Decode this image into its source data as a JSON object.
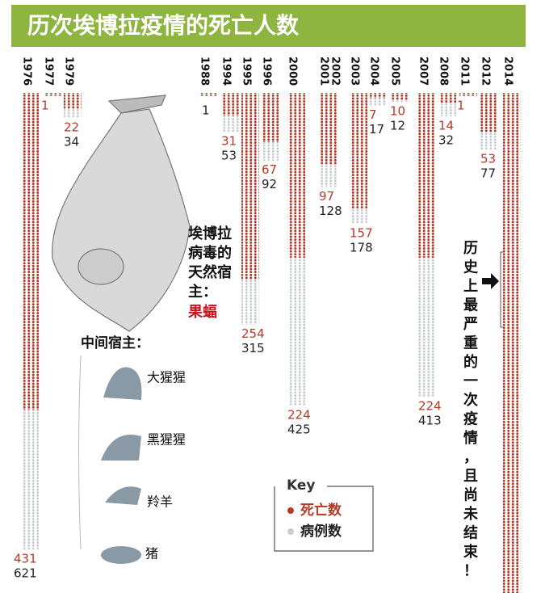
{
  "chart_data": {
    "type": "dot_column",
    "title": "历次埃博拉疫情的死亡人数",
    "categories": [
      "1976",
      "1977",
      "1979",
      "1988",
      "1994",
      "1995",
      "1996",
      "2000",
      "2001",
      "2002",
      "2003",
      "2004",
      "2005",
      "2007",
      "2008",
      "2011",
      "2012",
      "2014"
    ],
    "series": [
      {
        "name": "死亡数",
        "color": "#b23a26",
        "values": [
          431,
          1,
          22,
          1,
          31,
          254,
          67,
          224,
          97,
          null,
          157,
          7,
          10,
          224,
          14,
          1,
          53,
          700
        ]
      },
      {
        "name": "病例数",
        "color": "#c9cdd2",
        "values": [
          621,
          1,
          34,
          1,
          53,
          315,
          92,
          425,
          128,
          null,
          178,
          17,
          12,
          413,
          32,
          1,
          77,
          700
        ]
      }
    ],
    "legend_title": "Key",
    "host_label": [
      "埃博拉",
      "病毒的",
      "天然宿",
      "主："
    ],
    "host_name": "果蝠",
    "intermediate_label": "中间宿主：",
    "intermediate_hosts": [
      "大猩猩",
      "黑猩猩",
      "羚羊",
      "猪"
    ],
    "note": [
      "历",
      "史",
      "上",
      "最",
      "严",
      "重",
      "的",
      "一",
      "次",
      "疫",
      "情",
      "，",
      "且",
      "尚",
      "未",
      "结",
      "束",
      "！"
    ]
  }
}
